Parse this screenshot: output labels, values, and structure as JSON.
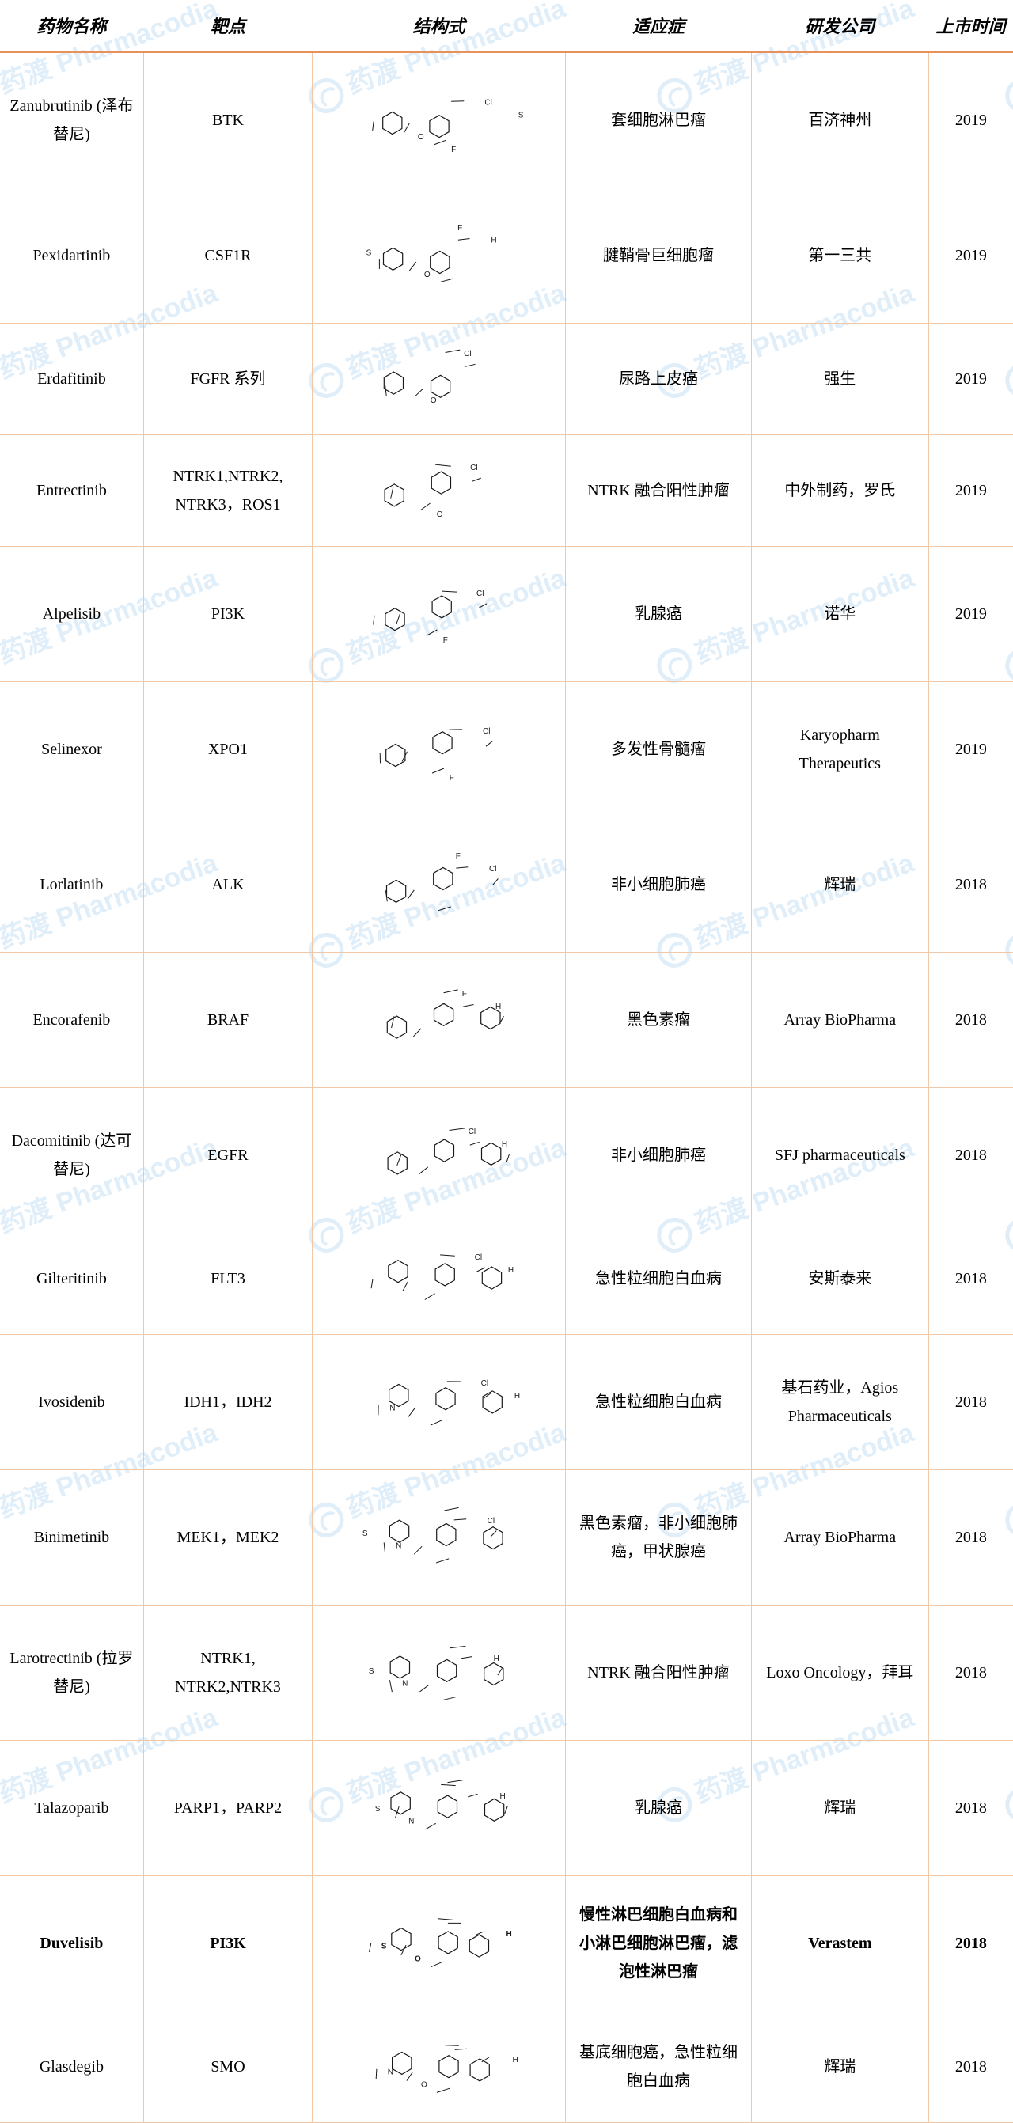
{
  "columns": {
    "name": "药物名称",
    "target": "靶点",
    "structure": "结构式",
    "indication": "适应症",
    "company": "研发公司",
    "year": "上市时间"
  },
  "rows": [
    {
      "name": "Zanubrutinib (泽布替尼)",
      "target": "BTK",
      "indication": "套细胞淋巴瘤",
      "company": "百济神州",
      "year": "2019",
      "bold": false,
      "tall": true
    },
    {
      "name": "Pexidartinib",
      "target": "CSF1R",
      "indication": "腱鞘骨巨细胞瘤",
      "company": "第一三共",
      "year": "2019",
      "bold": false,
      "tall": true
    },
    {
      "name": "Erdafitinib",
      "target": "FGFR 系列",
      "indication": "尿路上皮癌",
      "company": "强生",
      "year": "2019",
      "bold": false,
      "tall": false
    },
    {
      "name": "Entrectinib",
      "target": "NTRK1,NTRK2, NTRK3，ROS1",
      "indication": "NTRK 融合阳性肿瘤",
      "company": "中外制药，罗氏",
      "year": "2019",
      "bold": false,
      "tall": false
    },
    {
      "name": "Alpelisib",
      "target": "PI3K",
      "indication": "乳腺癌",
      "company": "诺华",
      "year": "2019",
      "bold": false,
      "tall": true
    },
    {
      "name": "Selinexor",
      "target": "XPO1",
      "indication": "多发性骨髓瘤",
      "company": "Karyopharm Therapeutics",
      "year": "2019",
      "bold": false,
      "tall": true
    },
    {
      "name": "Lorlatinib",
      "target": "ALK",
      "indication": "非小细胞肺癌",
      "company": "辉瑞",
      "year": "2018",
      "bold": false,
      "tall": true
    },
    {
      "name": "Encorafenib",
      "target": "BRAF",
      "indication": "黑色素瘤",
      "company": "Array BioPharma",
      "year": "2018",
      "bold": false,
      "tall": true
    },
    {
      "name": "Dacomitinib (达可替尼)",
      "target": "EGFR",
      "indication": "非小细胞肺癌",
      "company": "SFJ pharmaceuticals",
      "year": "2018",
      "bold": false,
      "tall": true
    },
    {
      "name": "Gilteritinib",
      "target": "FLT3",
      "indication": "急性粒细胞白血病",
      "company": "安斯泰来",
      "year": "2018",
      "bold": false,
      "tall": false
    },
    {
      "name": "Ivosidenib",
      "target": "IDH1，IDH2",
      "indication": "急性粒细胞白血病",
      "company": "基石药业，Agios Pharmaceuticals",
      "year": "2018",
      "bold": false,
      "tall": true
    },
    {
      "name": "Binimetinib",
      "target": "MEK1，MEK2",
      "indication": "黑色素瘤，非小细胞肺癌，甲状腺癌",
      "company": "Array BioPharma",
      "year": "2018",
      "bold": false,
      "tall": true
    },
    {
      "name": "Larotrectinib (拉罗替尼)",
      "target": "NTRK1, NTRK2,NTRK3",
      "indication": "NTRK 融合阳性肿瘤",
      "company": "Loxo Oncology，拜耳",
      "year": "2018",
      "bold": false,
      "tall": true
    },
    {
      "name": "Talazoparib",
      "target": "PARP1，PARP2",
      "indication": "乳腺癌",
      "company": "辉瑞",
      "year": "2018",
      "bold": false,
      "tall": true
    },
    {
      "name": "Duvelisib",
      "target": "PI3K",
      "indication": "慢性淋巴细胞白血病和小淋巴细胞淋巴瘤，滤泡性淋巴瘤",
      "company": "Verastem",
      "year": "2018",
      "bold": true,
      "tall": true
    },
    {
      "name": "Glasdegib",
      "target": "SMO",
      "indication": "基底细胞癌，急性粒细胞白血病",
      "company": "辉瑞",
      "year": "2018",
      "bold": false,
      "tall": false
    }
  ],
  "watermark_text": "药渡 Pharmacodia",
  "colors": {
    "header_border": "#e8915a",
    "cell_border": "#f0c8a8",
    "watermark": "rgba(80,160,220,0.18)",
    "text": "#000000",
    "background": "#ffffff"
  }
}
